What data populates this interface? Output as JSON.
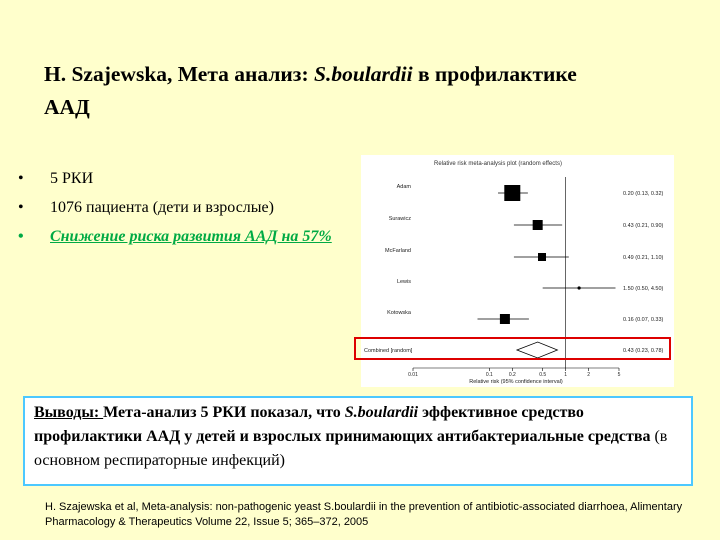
{
  "title": {
    "prefix": "H. Szajewska, Мета анализ: ",
    "species": "S.boulardii",
    "suffix": " в профилактике ААД"
  },
  "bullets": [
    {
      "marker": "•",
      "text": "5 РКИ"
    },
    {
      "marker": "•",
      "text": "1076 пациента (дети и взрослые)"
    },
    {
      "marker": "•",
      "text": "Снижение риска развития ААД на 57%"
    }
  ],
  "forest_plot": {
    "header": "Relative risk meta-analysis plot (random effects)",
    "studies": [
      {
        "label": "Adam",
        "rr": 0.2,
        "ci_low": 0.13,
        "ci_high": 0.32,
        "ci_text": "0.20 (0.13, 0.32)"
      },
      {
        "label": "Surawicz",
        "rr": 0.43,
        "ci_low": 0.21,
        "ci_high": 0.9,
        "ci_text": "0.43 (0.21, 0.90)"
      },
      {
        "label": "McFarland",
        "rr": 0.49,
        "ci_low": 0.21,
        "ci_high": 1.1,
        "ci_text": "0.49 (0.21, 1.10)"
      },
      {
        "label": "Lewis",
        "rr": 1.5,
        "ci_low": 0.5,
        "ci_high": 4.5,
        "ci_text": "1.50 (0.50, 4.50)"
      },
      {
        "label": "Kotowska",
        "rr": 0.16,
        "ci_low": 0.07,
        "ci_high": 0.33,
        "ci_text": "0.16 (0.07, 0.33)"
      }
    ],
    "combined": {
      "label": "Combined [random]",
      "rr": 0.43,
      "ci_low": 0.23,
      "ci_high": 0.78,
      "ci_text": "0.43 (0.23, 0.78)"
    },
    "x_ticks": [
      "0.01",
      "0.1",
      "0.2",
      "0.5",
      "1",
      "2",
      "5"
    ],
    "x_label": "Relative risk (95% confidence interval)"
  },
  "conclusion": {
    "label": "Выводы: ",
    "text1": "Мета-анализ 5 РКИ показал, что ",
    "species": "S.boulardii",
    "text2": " эффективное средство профилактики ААД у детей и взрослых принимающих антибактериальные средства ",
    "paren": "(в основном респираторные инфекций)"
  },
  "reference": "H. Szajewska et al, Meta-analysis: non-pathogenic yeast S.boulardii in the prevention of antibiotic-associated diarrhoea, Alimentary Pharmacology & Therapeutics Volume 22, Issue 5; 365–372, 2005",
  "colors": {
    "background": "#ffffcc",
    "highlight": "#00aa44",
    "frame": "#dd0000",
    "box_border": "#4cc8ff"
  }
}
